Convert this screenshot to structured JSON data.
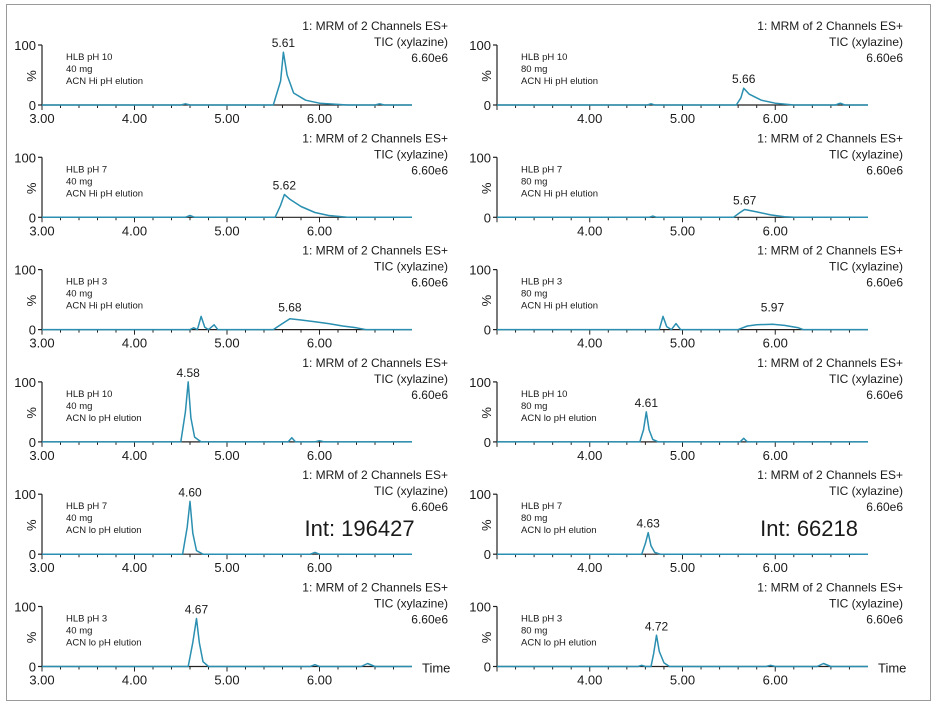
{
  "figure": {
    "time_label": "Time"
  },
  "chart_data": [
    {
      "type": "line",
      "panel": "left-1",
      "header": "1: MRM of 2 Channels ES+",
      "subheader": "TIC (xylazine)",
      "scale": "6.60e6",
      "sample_lines": [
        "HLB  pH 10",
        "40 mg",
        "ACN Hi pH elution"
      ],
      "y_ticks": [
        "100",
        "0"
      ],
      "y_unit": "%",
      "ylim": [
        0,
        100
      ],
      "x_ticks": [
        "3.00",
        "4.00",
        "5.00",
        "6.00"
      ],
      "xlim": [
        3.0,
        7.0
      ],
      "peak_label": "5.61",
      "annotation": "",
      "series": [
        {
          "x": [
            3.0,
            4.5,
            4.55,
            4.6,
            5.5,
            5.58,
            5.61,
            5.65,
            5.72,
            5.85,
            6.0,
            6.3,
            6.6,
            6.65,
            6.7,
            7.0
          ],
          "y": [
            0,
            0,
            2,
            0,
            0,
            40,
            88,
            50,
            20,
            8,
            3,
            0,
            0,
            2,
            0,
            0
          ]
        }
      ]
    },
    {
      "type": "line",
      "panel": "right-1",
      "header": "1: MRM of 2 Channels ES+",
      "subheader": "TIC (xylazine)",
      "scale": "6.60e6",
      "sample_lines": [
        "HLB  pH 10",
        "80 mg",
        "ACN Hi pH elution"
      ],
      "y_ticks": [
        "100",
        "0"
      ],
      "y_unit": "%",
      "ylim": [
        0,
        100
      ],
      "x_ticks": [
        "4.00",
        "5.00",
        "6.00"
      ],
      "xlim": [
        3.0,
        7.0
      ],
      "peak_label": "5.66",
      "annotation": "",
      "series": [
        {
          "x": [
            3.0,
            4.62,
            4.66,
            4.7,
            5.58,
            5.63,
            5.66,
            5.72,
            5.85,
            6.0,
            6.2,
            6.65,
            6.7,
            6.75,
            7.0
          ],
          "y": [
            0,
            0,
            2,
            0,
            0,
            12,
            28,
            18,
            8,
            3,
            0,
            0,
            3,
            0,
            0
          ]
        }
      ]
    },
    {
      "type": "line",
      "panel": "left-2",
      "header": "1: MRM of 2 Channels ES+",
      "subheader": "TIC (xylazine)",
      "scale": "6.60e6",
      "sample_lines": [
        "HLB  pH 7",
        "40 mg",
        "ACN Hi pH elution"
      ],
      "y_ticks": [
        "100",
        "0"
      ],
      "y_unit": "%",
      "ylim": [
        0,
        100
      ],
      "x_ticks": [
        "3.00",
        "4.00",
        "5.00",
        "6.00"
      ],
      "xlim": [
        3.0,
        7.0
      ],
      "peak_label": "5.62",
      "annotation": "",
      "series": [
        {
          "x": [
            3.0,
            4.55,
            4.6,
            4.65,
            5.52,
            5.58,
            5.62,
            5.68,
            5.8,
            5.95,
            6.1,
            6.3,
            7.0
          ],
          "y": [
            0,
            0,
            3,
            0,
            0,
            20,
            38,
            30,
            18,
            8,
            3,
            0,
            0
          ]
        }
      ]
    },
    {
      "type": "line",
      "panel": "right-2",
      "header": "1: MRM of 2 Channels ES+",
      "subheader": "TIC (xylazine)",
      "scale": "6.60e6",
      "sample_lines": [
        "HLB  pH 7",
        "80 mg",
        "ACN Hi pH elution"
      ],
      "y_ticks": [
        "100",
        "0"
      ],
      "y_unit": "%",
      "ylim": [
        0,
        100
      ],
      "x_ticks": [
        "4.00",
        "5.00",
        "6.00"
      ],
      "xlim": [
        3.0,
        7.0
      ],
      "peak_label": "5.67",
      "annotation": "",
      "series": [
        {
          "x": [
            3.0,
            4.64,
            4.68,
            4.72,
            5.55,
            5.62,
            5.67,
            5.8,
            5.95,
            6.1,
            6.2,
            7.0
          ],
          "y": [
            0,
            0,
            2,
            0,
            0,
            8,
            13,
            9,
            4,
            1,
            0,
            0
          ]
        }
      ]
    },
    {
      "type": "line",
      "panel": "left-3",
      "header": "1: MRM of 2 Channels ES+",
      "subheader": "TIC (xylazine)",
      "scale": "6.60e6",
      "sample_lines": [
        "HLB  pH 3",
        "40 mg",
        "ACN Hi pH elution"
      ],
      "y_ticks": [
        "100",
        "0"
      ],
      "y_unit": "%",
      "ylim": [
        0,
        100
      ],
      "x_ticks": [
        "3.00",
        "4.00",
        "5.00",
        "6.00"
      ],
      "xlim": [
        3.0,
        7.0
      ],
      "peak_label": "5.68",
      "annotation": "",
      "series": [
        {
          "x": [
            3.0,
            4.6,
            4.64,
            4.68,
            4.72,
            4.76,
            4.8,
            4.86,
            4.9,
            5.5,
            5.58,
            5.68,
            5.8,
            5.95,
            6.1,
            6.25,
            6.4,
            6.5,
            7.0
          ],
          "y": [
            0,
            0,
            3,
            0,
            22,
            4,
            0,
            8,
            0,
            0,
            8,
            18,
            16,
            13,
            10,
            6,
            3,
            0,
            0
          ]
        }
      ]
    },
    {
      "type": "line",
      "panel": "right-3",
      "header": "1: MRM of 2 Channels ES+",
      "subheader": "TIC (xylazine)",
      "scale": "6.60e6",
      "sample_lines": [
        "HLB  pH 3",
        "80 mg",
        "ACN Hi pH elution"
      ],
      "y_ticks": [
        "100",
        "0"
      ],
      "y_unit": "%",
      "ylim": [
        0,
        100
      ],
      "x_ticks": [
        "4.00",
        "5.00",
        "6.00"
      ],
      "xlim": [
        3.0,
        7.0
      ],
      "peak_label": "5.97",
      "annotation": "",
      "series": [
        {
          "x": [
            3.0,
            4.75,
            4.79,
            4.83,
            4.88,
            4.93,
            4.98,
            5.6,
            5.7,
            5.8,
            5.97,
            6.1,
            6.25,
            6.3,
            7.0
          ],
          "y": [
            0,
            0,
            22,
            5,
            0,
            10,
            0,
            0,
            6,
            8,
            9,
            7,
            3,
            0,
            0
          ]
        }
      ]
    },
    {
      "type": "line",
      "panel": "left-4",
      "header": "1: MRM of 2 Channels ES+",
      "subheader": "TIC (xylazine)",
      "scale": "6.60e6",
      "sample_lines": [
        "HLB  pH 10",
        "40 mg",
        "ACN lo pH elution"
      ],
      "y_ticks": [
        "100",
        "0"
      ],
      "y_unit": "%",
      "ylim": [
        0,
        100
      ],
      "x_ticks": [
        "3.00",
        "4.00",
        "5.00",
        "6.00"
      ],
      "xlim": [
        3.0,
        7.0
      ],
      "peak_label": "4.58",
      "annotation": "",
      "series": [
        {
          "x": [
            3.0,
            4.5,
            4.55,
            4.58,
            4.61,
            4.65,
            4.72,
            5.66,
            5.7,
            5.74,
            5.95,
            6.0,
            6.05,
            7.0
          ],
          "y": [
            0,
            0,
            50,
            100,
            40,
            8,
            0,
            0,
            7,
            0,
            0,
            2,
            0,
            0
          ]
        }
      ]
    },
    {
      "type": "line",
      "panel": "right-4",
      "header": "1: MRM of 2 Channels ES+",
      "subheader": "TIC (xylazine)",
      "scale": "6.60e6",
      "sample_lines": [
        "HLB  pH 10",
        "80 mg",
        "ACN lo pH elution"
      ],
      "y_ticks": [
        "100",
        "0"
      ],
      "y_unit": "%",
      "ylim": [
        0,
        100
      ],
      "x_ticks": [
        "4.00",
        "5.00",
        "6.00"
      ],
      "xlim": [
        3.0,
        7.0
      ],
      "peak_label": "4.61",
      "annotation": "",
      "series": [
        {
          "x": [
            3.0,
            4.54,
            4.58,
            4.61,
            4.64,
            4.68,
            4.74,
            5.62,
            5.66,
            5.7,
            7.0
          ],
          "y": [
            0,
            0,
            20,
            50,
            20,
            4,
            0,
            0,
            6,
            0,
            0
          ]
        }
      ]
    },
    {
      "type": "line",
      "panel": "left-5",
      "header": "1: MRM of 2 Channels ES+",
      "subheader": "TIC (xylazine)",
      "scale": "6.60e6",
      "sample_lines": [
        "HLB  pH 7",
        "40 mg",
        "ACN lo pH elution"
      ],
      "y_ticks": [
        "100",
        "0"
      ],
      "y_unit": "%",
      "ylim": [
        0,
        100
      ],
      "x_ticks": [
        "3.00",
        "4.00",
        "5.00",
        "6.00"
      ],
      "xlim": [
        3.0,
        7.0
      ],
      "peak_label": "4.60",
      "annotation": "Int: 196427",
      "series": [
        {
          "x": [
            3.0,
            4.52,
            4.57,
            4.6,
            4.63,
            4.67,
            4.74,
            5.9,
            5.95,
            6.0,
            7.0
          ],
          "y": [
            0,
            0,
            45,
            88,
            35,
            6,
            0,
            0,
            3,
            0,
            0
          ]
        }
      ]
    },
    {
      "type": "line",
      "panel": "right-5",
      "header": "1: MRM of 2 Channels ES+",
      "subheader": "TIC (xylazine)",
      "scale": "6.60e6",
      "sample_lines": [
        "HLB  pH 7",
        "80 mg",
        "ACN lo pH elution"
      ],
      "y_ticks": [
        "100",
        "0"
      ],
      "y_unit": "%",
      "ylim": [
        0,
        100
      ],
      "x_ticks": [
        "4.00",
        "5.00",
        "6.00"
      ],
      "xlim": [
        3.0,
        7.0
      ],
      "peak_label": "4.63",
      "annotation": "Int: 66218",
      "series": [
        {
          "x": [
            3.0,
            4.56,
            4.6,
            4.63,
            4.66,
            4.7,
            4.76,
            7.0
          ],
          "y": [
            0,
            0,
            18,
            36,
            14,
            3,
            0,
            0
          ]
        }
      ]
    },
    {
      "type": "line",
      "panel": "left-6",
      "header": "1: MRM of 2 Channels ES+",
      "subheader": "TIC (xylazine)",
      "scale": "6.60e6",
      "sample_lines": [
        "HLB  pH 3",
        "40 mg",
        "ACN lo pH elution"
      ],
      "y_ticks": [
        "100",
        "0"
      ],
      "y_unit": "%",
      "ylim": [
        0,
        100
      ],
      "x_ticks": [
        "3.00",
        "4.00",
        "5.00",
        "6.00"
      ],
      "xlim": [
        3.0,
        7.0
      ],
      "peak_label": "4.67",
      "annotation": "",
      "series": [
        {
          "x": [
            3.0,
            4.58,
            4.63,
            4.67,
            4.7,
            4.74,
            4.8,
            5.9,
            5.95,
            6.0,
            6.45,
            6.52,
            6.6,
            7.0
          ],
          "y": [
            0,
            0,
            40,
            80,
            40,
            8,
            0,
            0,
            3,
            0,
            0,
            5,
            0,
            0
          ]
        }
      ]
    },
    {
      "type": "line",
      "panel": "right-6",
      "header": "1: MRM of 2 Channels ES+",
      "subheader": "TIC (xylazine)",
      "scale": "6.60e6",
      "sample_lines": [
        "HLB  pH 3",
        "80 mg",
        "ACN lo pH elution"
      ],
      "y_ticks": [
        "100",
        "0"
      ],
      "y_unit": "%",
      "ylim": [
        0,
        100
      ],
      "x_ticks": [
        "4.00",
        "5.00",
        "6.00"
      ],
      "xlim": [
        3.0,
        7.0
      ],
      "peak_label": "4.72",
      "annotation": "",
      "series": [
        {
          "x": [
            3.0,
            4.52,
            4.56,
            4.6,
            4.66,
            4.69,
            4.72,
            4.75,
            4.8,
            4.86,
            5.9,
            5.95,
            6.0,
            6.45,
            6.52,
            6.6,
            7.0
          ],
          "y": [
            0,
            0,
            2,
            0,
            0,
            22,
            52,
            25,
            6,
            0,
            0,
            2,
            0,
            0,
            5,
            0,
            0
          ]
        }
      ]
    }
  ],
  "style": {
    "trace_color": "#2a8fb0",
    "axis_color": "#222222",
    "text_color": "#1a1a1a"
  }
}
